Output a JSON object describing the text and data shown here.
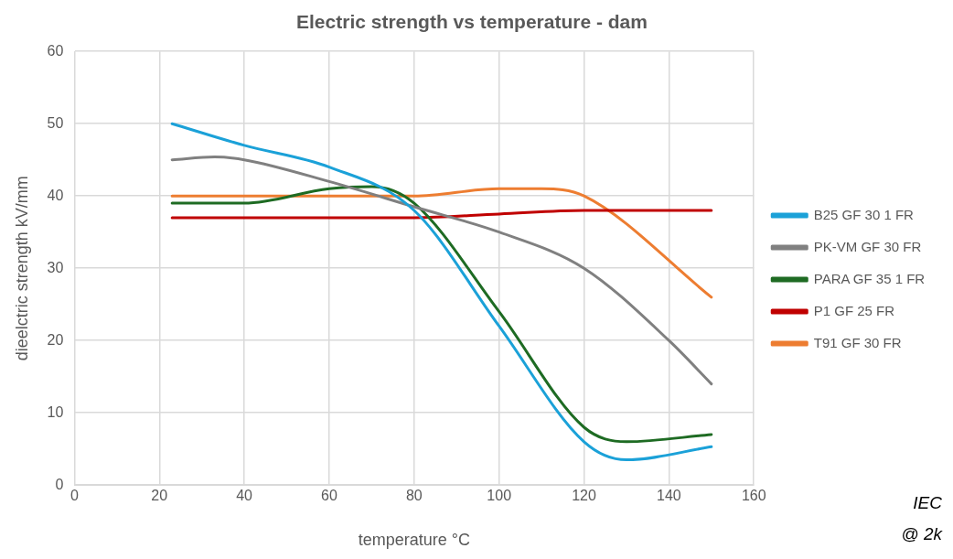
{
  "chart_data": {
    "type": "line",
    "title": "Electric strength vs temperature - dam",
    "xlabel": "temperature °C",
    "ylabel": "dieelctric strength kV/mm",
    "xlim": [
      0,
      160
    ],
    "xticks": [
      0,
      20,
      40,
      60,
      80,
      100,
      120,
      140,
      160
    ],
    "ylim": [
      0,
      60
    ],
    "yticks": [
      0,
      10,
      20,
      30,
      40,
      50,
      60
    ],
    "grid": true,
    "legend": "right",
    "marker": "none",
    "line_style": "solid",
    "series": [
      {
        "name": "B25 GF 30 1 FR",
        "color": "#1ba1d8",
        "x": [
          23,
          40,
          60,
          80,
          100,
          120,
          130,
          150
        ],
        "values": [
          50,
          47,
          44,
          38,
          22,
          6,
          3.5,
          5.3
        ]
      },
      {
        "name": "PK-VM GF 30 FR",
        "color": "#808080",
        "x": [
          23,
          33,
          40,
          60,
          80,
          100,
          120,
          140,
          150
        ],
        "values": [
          45,
          45.4,
          45,
          42,
          38.5,
          35,
          30,
          20,
          14
        ]
      },
      {
        "name": "PARA GF 35 1 FR",
        "color": "#1e6b23",
        "x": [
          23,
          40,
          60,
          70,
          80,
          100,
          120,
          130,
          150
        ],
        "values": [
          39,
          39,
          41,
          41.3,
          39,
          24,
          8,
          6,
          7
        ]
      },
      {
        "name": "P1 GF 25 FR",
        "color": "#c00000",
        "x": [
          23,
          60,
          80,
          100,
          120,
          150
        ],
        "values": [
          37,
          37,
          37,
          37.5,
          38,
          38
        ]
      },
      {
        "name": "T91 GF 30 FR",
        "color": "#ed7d31",
        "x": [
          23,
          80,
          100,
          110,
          120,
          150
        ],
        "values": [
          40,
          40,
          41,
          41,
          40,
          26
        ]
      }
    ],
    "annotations": [
      "IEC",
      "@ 2k"
    ]
  }
}
